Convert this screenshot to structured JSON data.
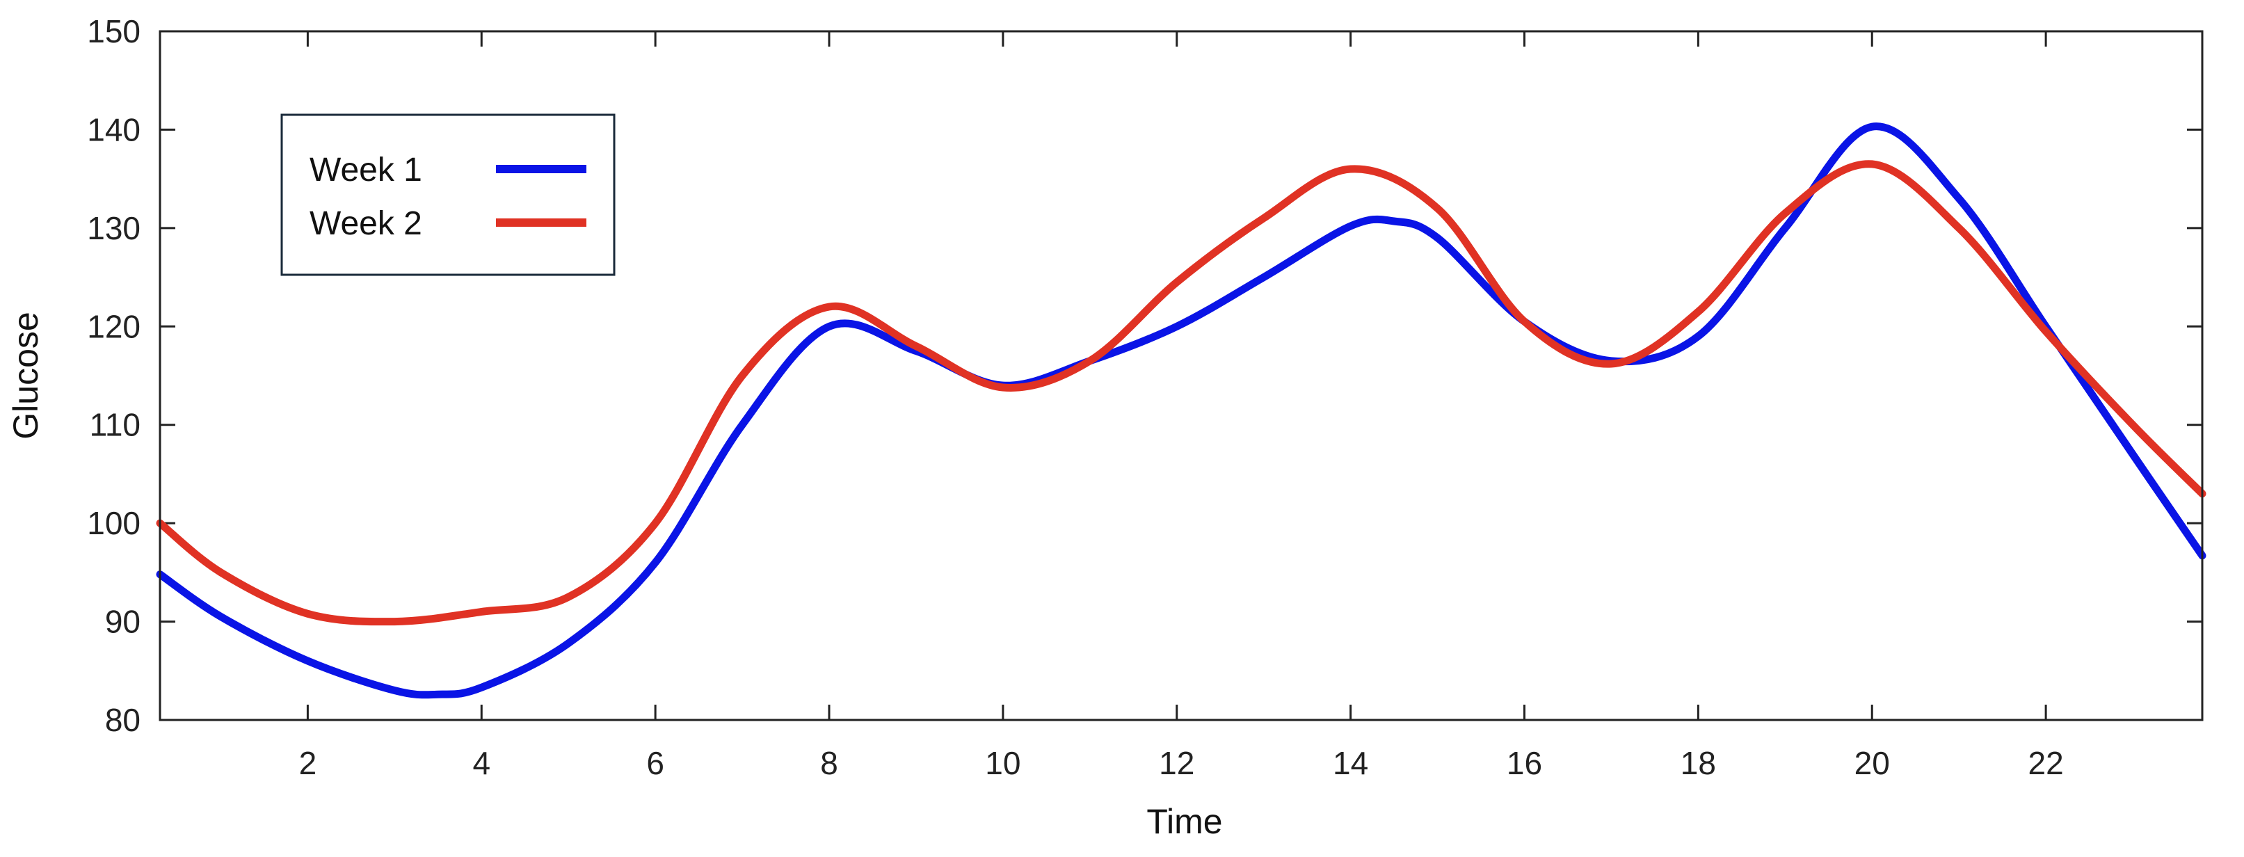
{
  "chart_data": {
    "type": "line",
    "title": "",
    "xlabel": "Time",
    "ylabel": "Glucose",
    "xlim": [
      0.3,
      23.8
    ],
    "ylim": [
      80,
      150
    ],
    "xticks": [
      2,
      4,
      6,
      8,
      10,
      12,
      14,
      16,
      18,
      20,
      22
    ],
    "yticks": [
      80,
      90,
      100,
      110,
      120,
      130,
      140,
      150
    ],
    "grid": false,
    "legend": {
      "position": "top-left",
      "boxed": true
    },
    "series": [
      {
        "name": "Week 1",
        "color": "#0a14e6",
        "x": [
          0.3,
          1,
          2,
          3,
          3.5,
          4,
          5,
          6,
          7,
          8,
          9,
          10,
          11,
          12,
          13,
          14,
          14.5,
          15,
          16,
          17,
          18,
          19,
          20,
          21,
          22,
          23,
          23.8
        ],
        "y": [
          94.8,
          90.5,
          86,
          83,
          82.6,
          83.3,
          87.8,
          96,
          110,
          120,
          117.5,
          114,
          116.5,
          120,
          125,
          130.2,
          130.7,
          129,
          120.5,
          116.5,
          119,
          130,
          140.3,
          133,
          120,
          107,
          96.7
        ]
      },
      {
        "name": "Week 2",
        "color": "#e03224",
        "x": [
          0.3,
          1,
          2,
          3,
          4,
          5,
          6,
          7,
          8,
          9,
          10,
          11,
          12,
          13,
          14,
          15,
          16,
          17,
          18,
          19,
          20,
          21,
          22,
          23,
          23.8
        ],
        "y": [
          100,
          95,
          90.8,
          90,
          91,
          92.5,
          100,
          115,
          122,
          118,
          113.8,
          116.5,
          124.5,
          131,
          136,
          132,
          120.5,
          116.2,
          121.5,
          131.5,
          136.5,
          130,
          119.5,
          110,
          103
        ]
      }
    ]
  }
}
